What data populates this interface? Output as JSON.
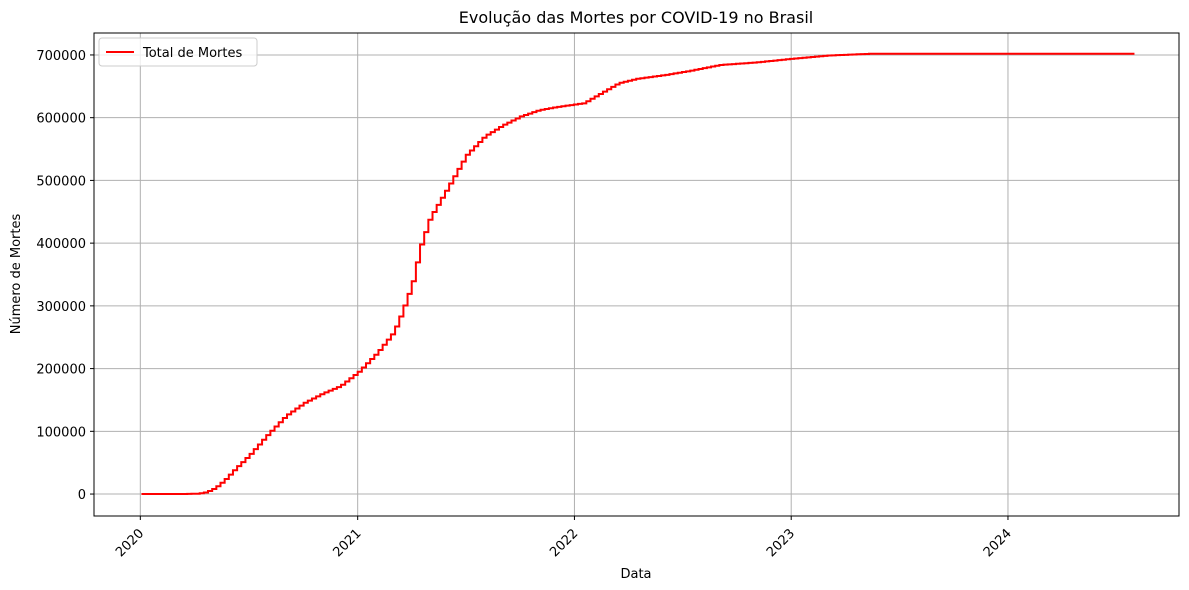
{
  "chart_data": {
    "type": "line",
    "title": "Evolução das Mortes por COVID-19 no Brasil",
    "xlabel": "Data",
    "ylabel": "Número de Mortes",
    "grid": true,
    "legend_position": "top-left",
    "x_ticks": [
      "2020",
      "2021",
      "2022",
      "2023",
      "2024"
    ],
    "y_ticks": [
      "0",
      "100000",
      "200000",
      "300000",
      "400000",
      "500000",
      "600000",
      "700000"
    ],
    "xlim": [
      "2019-10-15",
      "2024-10-15"
    ],
    "ylim": [
      -35000,
      735000
    ],
    "series": [
      {
        "name": "Total de Mortes",
        "color": "#ff0000",
        "points": [
          [
            "2020-01-03",
            0
          ],
          [
            "2020-03-01",
            0
          ],
          [
            "2020-04-05",
            500
          ],
          [
            "2020-04-20",
            3000
          ],
          [
            "2020-05-05",
            10000
          ],
          [
            "2020-05-20",
            22000
          ],
          [
            "2020-06-05",
            38000
          ],
          [
            "2020-07-01",
            62000
          ],
          [
            "2020-08-01",
            95000
          ],
          [
            "2020-09-01",
            125000
          ],
          [
            "2020-10-01",
            145000
          ],
          [
            "2020-11-01",
            160000
          ],
          [
            "2020-12-01",
            172000
          ],
          [
            "2021-01-01",
            195000
          ],
          [
            "2021-02-01",
            225000
          ],
          [
            "2021-03-01",
            258000
          ],
          [
            "2021-03-15",
            290000
          ],
          [
            "2021-04-01",
            335000
          ],
          [
            "2021-04-15",
            395000
          ],
          [
            "2021-05-01",
            440000
          ],
          [
            "2021-06-01",
            490000
          ],
          [
            "2021-07-01",
            540000
          ],
          [
            "2021-08-01",
            570000
          ],
          [
            "2021-09-01",
            588000
          ],
          [
            "2021-10-01",
            602000
          ],
          [
            "2021-11-01",
            612000
          ],
          [
            "2021-12-01",
            617000
          ],
          [
            "2022-01-15",
            623000
          ],
          [
            "2022-02-15",
            640000
          ],
          [
            "2022-03-15",
            655000
          ],
          [
            "2022-04-15",
            662000
          ],
          [
            "2022-06-01",
            668000
          ],
          [
            "2022-07-15",
            675000
          ],
          [
            "2022-09-01",
            684000
          ],
          [
            "2022-11-01",
            688000
          ],
          [
            "2023-01-01",
            694000
          ],
          [
            "2023-03-01",
            699000
          ],
          [
            "2023-05-15",
            702000
          ],
          [
            "2024-08-01",
            702000
          ]
        ]
      }
    ]
  }
}
